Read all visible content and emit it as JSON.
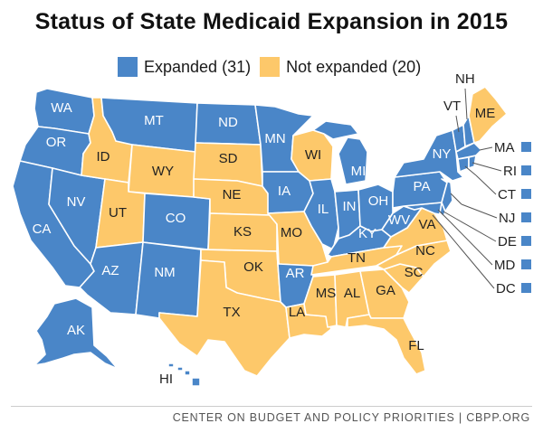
{
  "title": "Status of State Medicaid Expansion in 2015",
  "legend": {
    "expanded": {
      "label": "Expanded (31)",
      "color": "#4a86c8"
    },
    "not_expanded": {
      "label": "Not expanded (20)",
      "color": "#fdc86a"
    }
  },
  "states": {
    "WA": "WA",
    "OR": "OR",
    "CA": "CA",
    "NV": "NV",
    "ID": "ID",
    "MT": "MT",
    "WY": "WY",
    "UT": "UT",
    "AZ": "AZ",
    "CO": "CO",
    "NM": "NM",
    "ND": "ND",
    "SD": "SD",
    "NE": "NE",
    "KS": "KS",
    "OK": "OK",
    "TX": "TX",
    "MN": "MN",
    "IA": "IA",
    "MO": "MO",
    "AR": "AR",
    "LA": "LA",
    "WI": "WI",
    "IL": "IL",
    "MI": "MI",
    "IN": "IN",
    "OH": "OH",
    "KY": "KY",
    "TN": "TN",
    "MS": "MS",
    "AL": "AL",
    "GA": "GA",
    "FL": "FL",
    "SC": "SC",
    "NC": "NC",
    "VA": "VA",
    "WV": "WV",
    "PA": "PA",
    "NY": "NY",
    "VT": "VT",
    "NH": "NH",
    "ME": "ME",
    "MA": "MA",
    "RI": "RI",
    "CT": "CT",
    "NJ": "NJ",
    "DE": "DE",
    "MD": "MD",
    "DC": "DC",
    "AK": "AK",
    "HI": "HI"
  },
  "footer": "CENTER ON BUDGET AND POLICY PRIORITIES | CBPP.ORG"
}
